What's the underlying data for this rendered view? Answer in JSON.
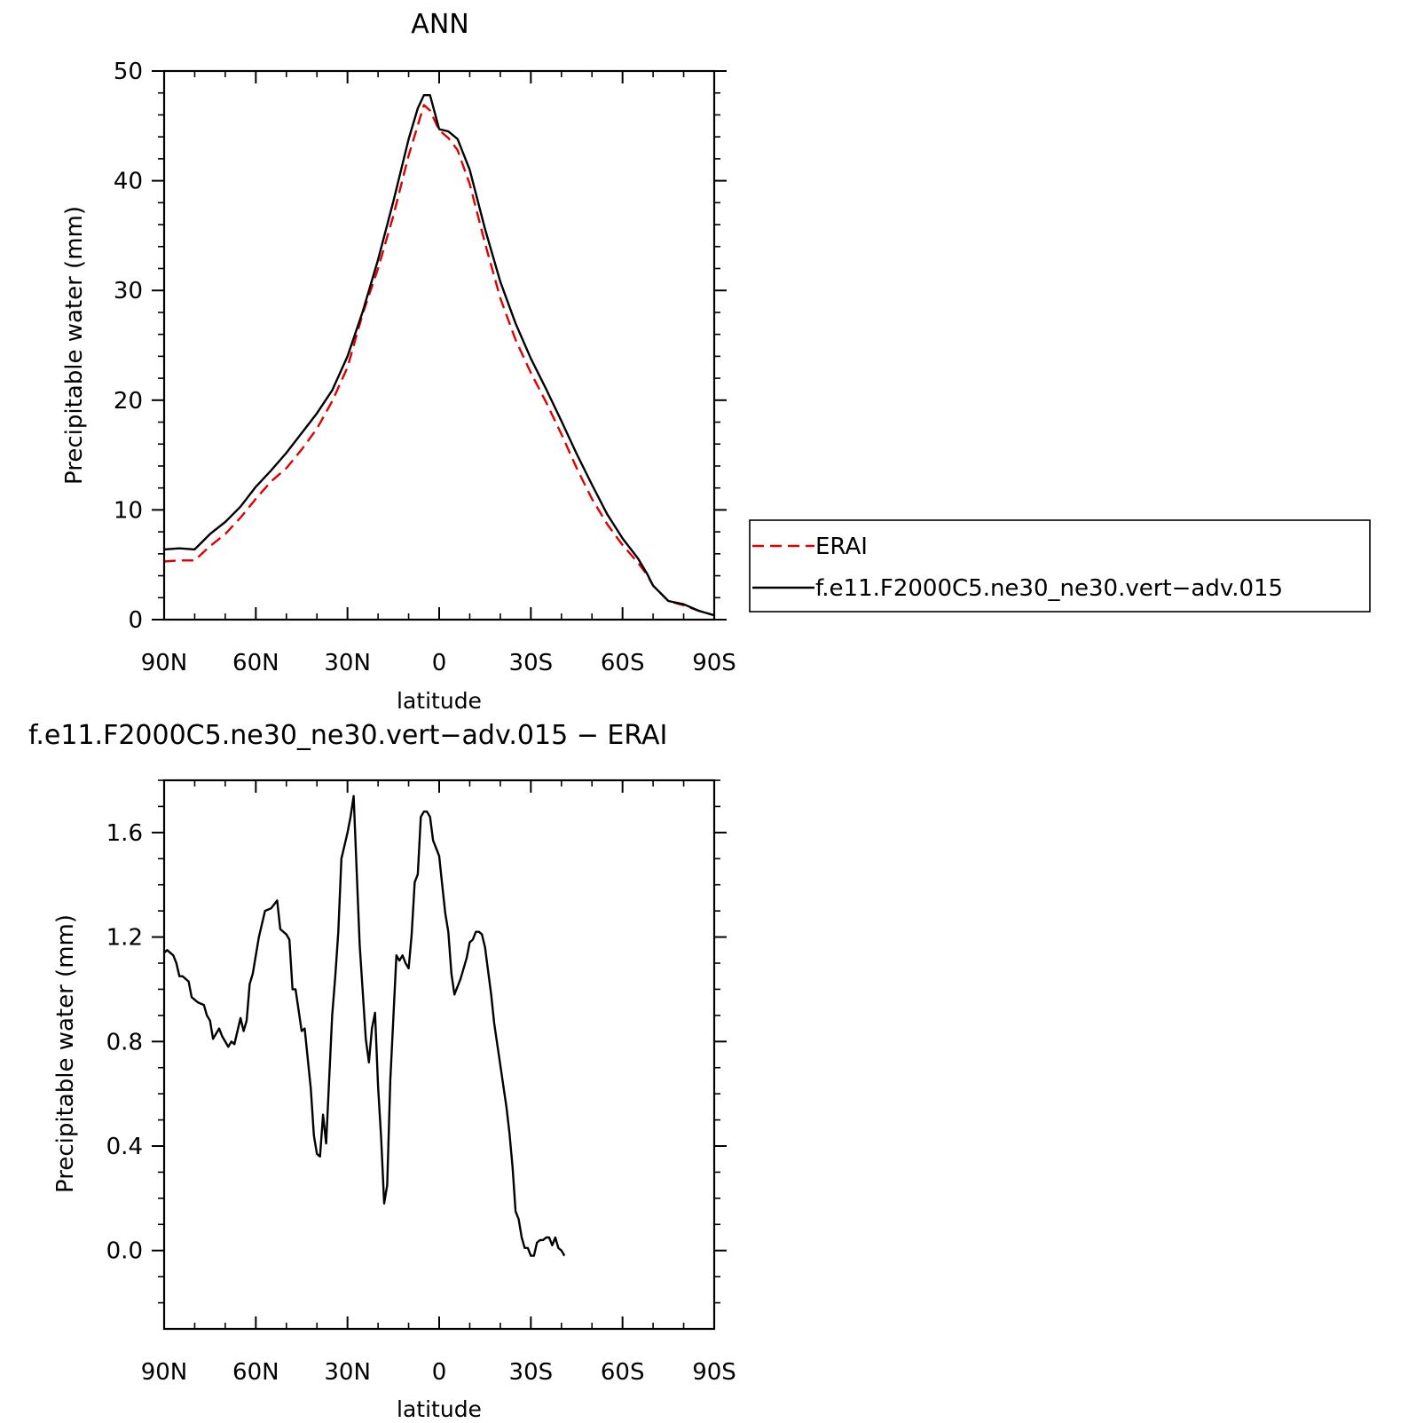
{
  "chart_data": [
    {
      "type": "line",
      "title": "ANN",
      "xlabel": "latitude",
      "ylabel": "Precipitable water (mm)",
      "xlim": [
        90,
        -90
      ],
      "ylim": [
        0,
        50
      ],
      "xticks": [
        {
          "value": 90,
          "label": "90N"
        },
        {
          "value": 60,
          "label": "60N"
        },
        {
          "value": 30,
          "label": "30N"
        },
        {
          "value": 0,
          "label": "0"
        },
        {
          "value": -30,
          "label": "30S"
        },
        {
          "value": -60,
          "label": "60S"
        },
        {
          "value": -90,
          "label": "90S"
        }
      ],
      "yticks": [
        {
          "value": 0,
          "label": "0"
        },
        {
          "value": 10,
          "label": "10"
        },
        {
          "value": 20,
          "label": "20"
        },
        {
          "value": 30,
          "label": "30"
        },
        {
          "value": 40,
          "label": "40"
        },
        {
          "value": 50,
          "label": "50"
        }
      ],
      "legend": {
        "placement": "right",
        "entries": [
          {
            "label": "ERAI",
            "color": "#e00000",
            "dash": "dashed"
          },
          {
            "label": "f.e11.F2000C5.ne30_ne30.vert−adv.015",
            "color": "#000000",
            "dash": "solid"
          }
        ]
      },
      "series": [
        {
          "name": "ERAI",
          "color": "#e00000",
          "dash": "dashed",
          "points": [
            [
              90,
              5.3
            ],
            [
              85,
              5.4
            ],
            [
              80,
              5.4
            ],
            [
              75,
              6.7
            ],
            [
              70,
              7.8
            ],
            [
              65,
              9.3
            ],
            [
              60,
              11.0
            ],
            [
              55,
              12.6
            ],
            [
              50,
              13.8
            ],
            [
              45,
              15.5
            ],
            [
              40,
              17.4
            ],
            [
              35,
              19.9
            ],
            [
              30,
              23.0
            ],
            [
              25,
              27.9
            ],
            [
              20,
              32.0
            ],
            [
              15,
              36.8
            ],
            [
              10,
              42.3
            ],
            [
              5,
              46.9
            ],
            [
              3,
              46.4
            ],
            [
              0,
              44.6
            ],
            [
              -3,
              43.9
            ],
            [
              -6,
              42.8
            ],
            [
              -10,
              39.7
            ],
            [
              -15,
              34.3
            ],
            [
              -20,
              29.3
            ],
            [
              -25,
              25.5
            ],
            [
              -30,
              22.5
            ],
            [
              -35,
              19.8
            ],
            [
              -40,
              16.9
            ],
            [
              -45,
              13.8
            ],
            [
              -50,
              11.0
            ],
            [
              -55,
              8.7
            ],
            [
              -60,
              6.8
            ],
            [
              -65,
              5.2
            ],
            [
              -68,
              4.1
            ],
            [
              -70,
              3.1
            ],
            [
              -75,
              1.7
            ],
            [
              -80,
              1.3
            ],
            [
              -85,
              0.8
            ],
            [
              -90,
              0.4
            ]
          ]
        },
        {
          "name": "f.e11.F2000C5.ne30_ne30.vert−adv.015",
          "color": "#000000",
          "dash": "solid",
          "points": [
            [
              90,
              6.4
            ],
            [
              85,
              6.5
            ],
            [
              80,
              6.4
            ],
            [
              75,
              7.8
            ],
            [
              70,
              8.9
            ],
            [
              65,
              10.3
            ],
            [
              60,
              12.1
            ],
            [
              55,
              13.6
            ],
            [
              50,
              15.2
            ],
            [
              45,
              17.0
            ],
            [
              40,
              18.8
            ],
            [
              35,
              20.9
            ],
            [
              30,
              24.0
            ],
            [
              25,
              28.1
            ],
            [
              20,
              32.8
            ],
            [
              15,
              38.1
            ],
            [
              10,
              43.8
            ],
            [
              7,
              46.6
            ],
            [
              5,
              47.8
            ],
            [
              3,
              47.8
            ],
            [
              0,
              44.7
            ],
            [
              -3,
              44.5
            ],
            [
              -6,
              43.8
            ],
            [
              -10,
              41.0
            ],
            [
              -15,
              35.6
            ],
            [
              -20,
              30.8
            ],
            [
              -25,
              27.0
            ],
            [
              -30,
              23.8
            ],
            [
              -35,
              21.0
            ],
            [
              -40,
              18.1
            ],
            [
              -45,
              15.1
            ],
            [
              -50,
              12.3
            ],
            [
              -55,
              9.6
            ],
            [
              -60,
              7.4
            ],
            [
              -65,
              5.6
            ],
            [
              -68,
              4.2
            ],
            [
              -70,
              3.1
            ],
            [
              -75,
              1.7
            ],
            [
              -80,
              1.4
            ],
            [
              -85,
              0.8
            ],
            [
              -90,
              0.4
            ]
          ]
        }
      ]
    },
    {
      "type": "line",
      "title": "f.e11.F2000C5.ne30_ne30.vert−adv.015 − ERAI",
      "xlabel": "latitude",
      "ylabel": "Precipitable water (mm)",
      "xlim": [
        90,
        -90
      ],
      "ylim": [
        -0.3,
        1.8
      ],
      "xticks": [
        {
          "value": 90,
          "label": "90N"
        },
        {
          "value": 60,
          "label": "60N"
        },
        {
          "value": 30,
          "label": "30N"
        },
        {
          "value": 0,
          "label": "0"
        },
        {
          "value": -30,
          "label": "30S"
        },
        {
          "value": -60,
          "label": "60S"
        },
        {
          "value": -90,
          "label": "90S"
        }
      ],
      "yticks": [
        {
          "value": 0.0,
          "label": "0.0"
        },
        {
          "value": 0.4,
          "label": "0.4"
        },
        {
          "value": 0.8,
          "label": "0.8"
        },
        {
          "value": 1.2,
          "label": "1.2"
        },
        {
          "value": 1.6,
          "label": "1.6"
        }
      ],
      "series": [
        {
          "color": "#000000",
          "dash": "solid",
          "points": [
            [
              90,
              1.14
            ],
            [
              89,
              1.15
            ],
            [
              87,
              1.13
            ],
            [
              86,
              1.1
            ],
            [
              85,
              1.05
            ],
            [
              84,
              1.05
            ],
            [
              82,
              1.03
            ],
            [
              81,
              0.97
            ],
            [
              79,
              0.95
            ],
            [
              77,
              0.94
            ],
            [
              76,
              0.9
            ],
            [
              75,
              0.88
            ],
            [
              74,
              0.81
            ],
            [
              72,
              0.85
            ],
            [
              71,
              0.82
            ],
            [
              69,
              0.78
            ],
            [
              68,
              0.8
            ],
            [
              67,
              0.79
            ],
            [
              65,
              0.89
            ],
            [
              64,
              0.84
            ],
            [
              63,
              0.88
            ],
            [
              62,
              1.02
            ],
            [
              61,
              1.06
            ],
            [
              59,
              1.2
            ],
            [
              57,
              1.3
            ],
            [
              55,
              1.31
            ],
            [
              53,
              1.34
            ],
            [
              52,
              1.23
            ],
            [
              50,
              1.21
            ],
            [
              49,
              1.19
            ],
            [
              48,
              1.0
            ],
            [
              47,
              1.0
            ],
            [
              45,
              0.84
            ],
            [
              44,
              0.85
            ],
            [
              42,
              0.62
            ],
            [
              41,
              0.44
            ],
            [
              40,
              0.37
            ],
            [
              39,
              0.36
            ],
            [
              38,
              0.52
            ],
            [
              37,
              0.41
            ],
            [
              35,
              0.9
            ],
            [
              34,
              1.05
            ],
            [
              33,
              1.22
            ],
            [
              32,
              1.5
            ],
            [
              30,
              1.6
            ],
            [
              29,
              1.66
            ],
            [
              28,
              1.74
            ],
            [
              26,
              1.17
            ],
            [
              24,
              0.81
            ],
            [
              23,
              0.72
            ],
            [
              22,
              0.85
            ],
            [
              21,
              0.91
            ],
            [
              20,
              0.63
            ],
            [
              19,
              0.43
            ],
            [
              18,
              0.18
            ],
            [
              17,
              0.25
            ],
            [
              16,
              0.65
            ],
            [
              14,
              1.13
            ],
            [
              13,
              1.11
            ],
            [
              12,
              1.13
            ],
            [
              11,
              1.1
            ],
            [
              10,
              1.08
            ],
            [
              9,
              1.21
            ],
            [
              8,
              1.41
            ],
            [
              7,
              1.44
            ],
            [
              6,
              1.66
            ],
            [
              5,
              1.68
            ],
            [
              4,
              1.68
            ],
            [
              3,
              1.66
            ],
            [
              2,
              1.57
            ],
            [
              1,
              1.54
            ],
            [
              0,
              1.51
            ],
            [
              -1,
              1.4
            ],
            [
              -2,
              1.29
            ],
            [
              -3,
              1.22
            ],
            [
              -4,
              1.06
            ],
            [
              -5,
              0.98
            ],
            [
              -7,
              1.04
            ],
            [
              -9,
              1.12
            ],
            [
              -10,
              1.18
            ],
            [
              -11,
              1.19
            ],
            [
              -12,
              1.22
            ],
            [
              -13,
              1.22
            ],
            [
              -14,
              1.21
            ],
            [
              -15,
              1.16
            ],
            [
              -17,
              0.98
            ],
            [
              -18,
              0.87
            ],
            [
              -20,
              0.71
            ],
            [
              -22,
              0.55
            ],
            [
              -23,
              0.45
            ],
            [
              -24,
              0.32
            ],
            [
              -25,
              0.15
            ],
            [
              -26,
              0.12
            ],
            [
              -27,
              0.05
            ],
            [
              -28,
              0.01
            ],
            [
              -29,
              0.01
            ],
            [
              -30,
              -0.02
            ],
            [
              -31,
              -0.02
            ],
            [
              -32,
              0.03
            ],
            [
              -33,
              0.04
            ],
            [
              -34,
              0.04
            ],
            [
              -35,
              0.05
            ],
            [
              -36,
              0.05
            ],
            [
              -37,
              0.02
            ],
            [
              -38,
              0.05
            ],
            [
              -39,
              0.01
            ],
            [
              -40,
              0.0
            ],
            [
              -41,
              -0.02
            ]
          ]
        }
      ]
    }
  ]
}
